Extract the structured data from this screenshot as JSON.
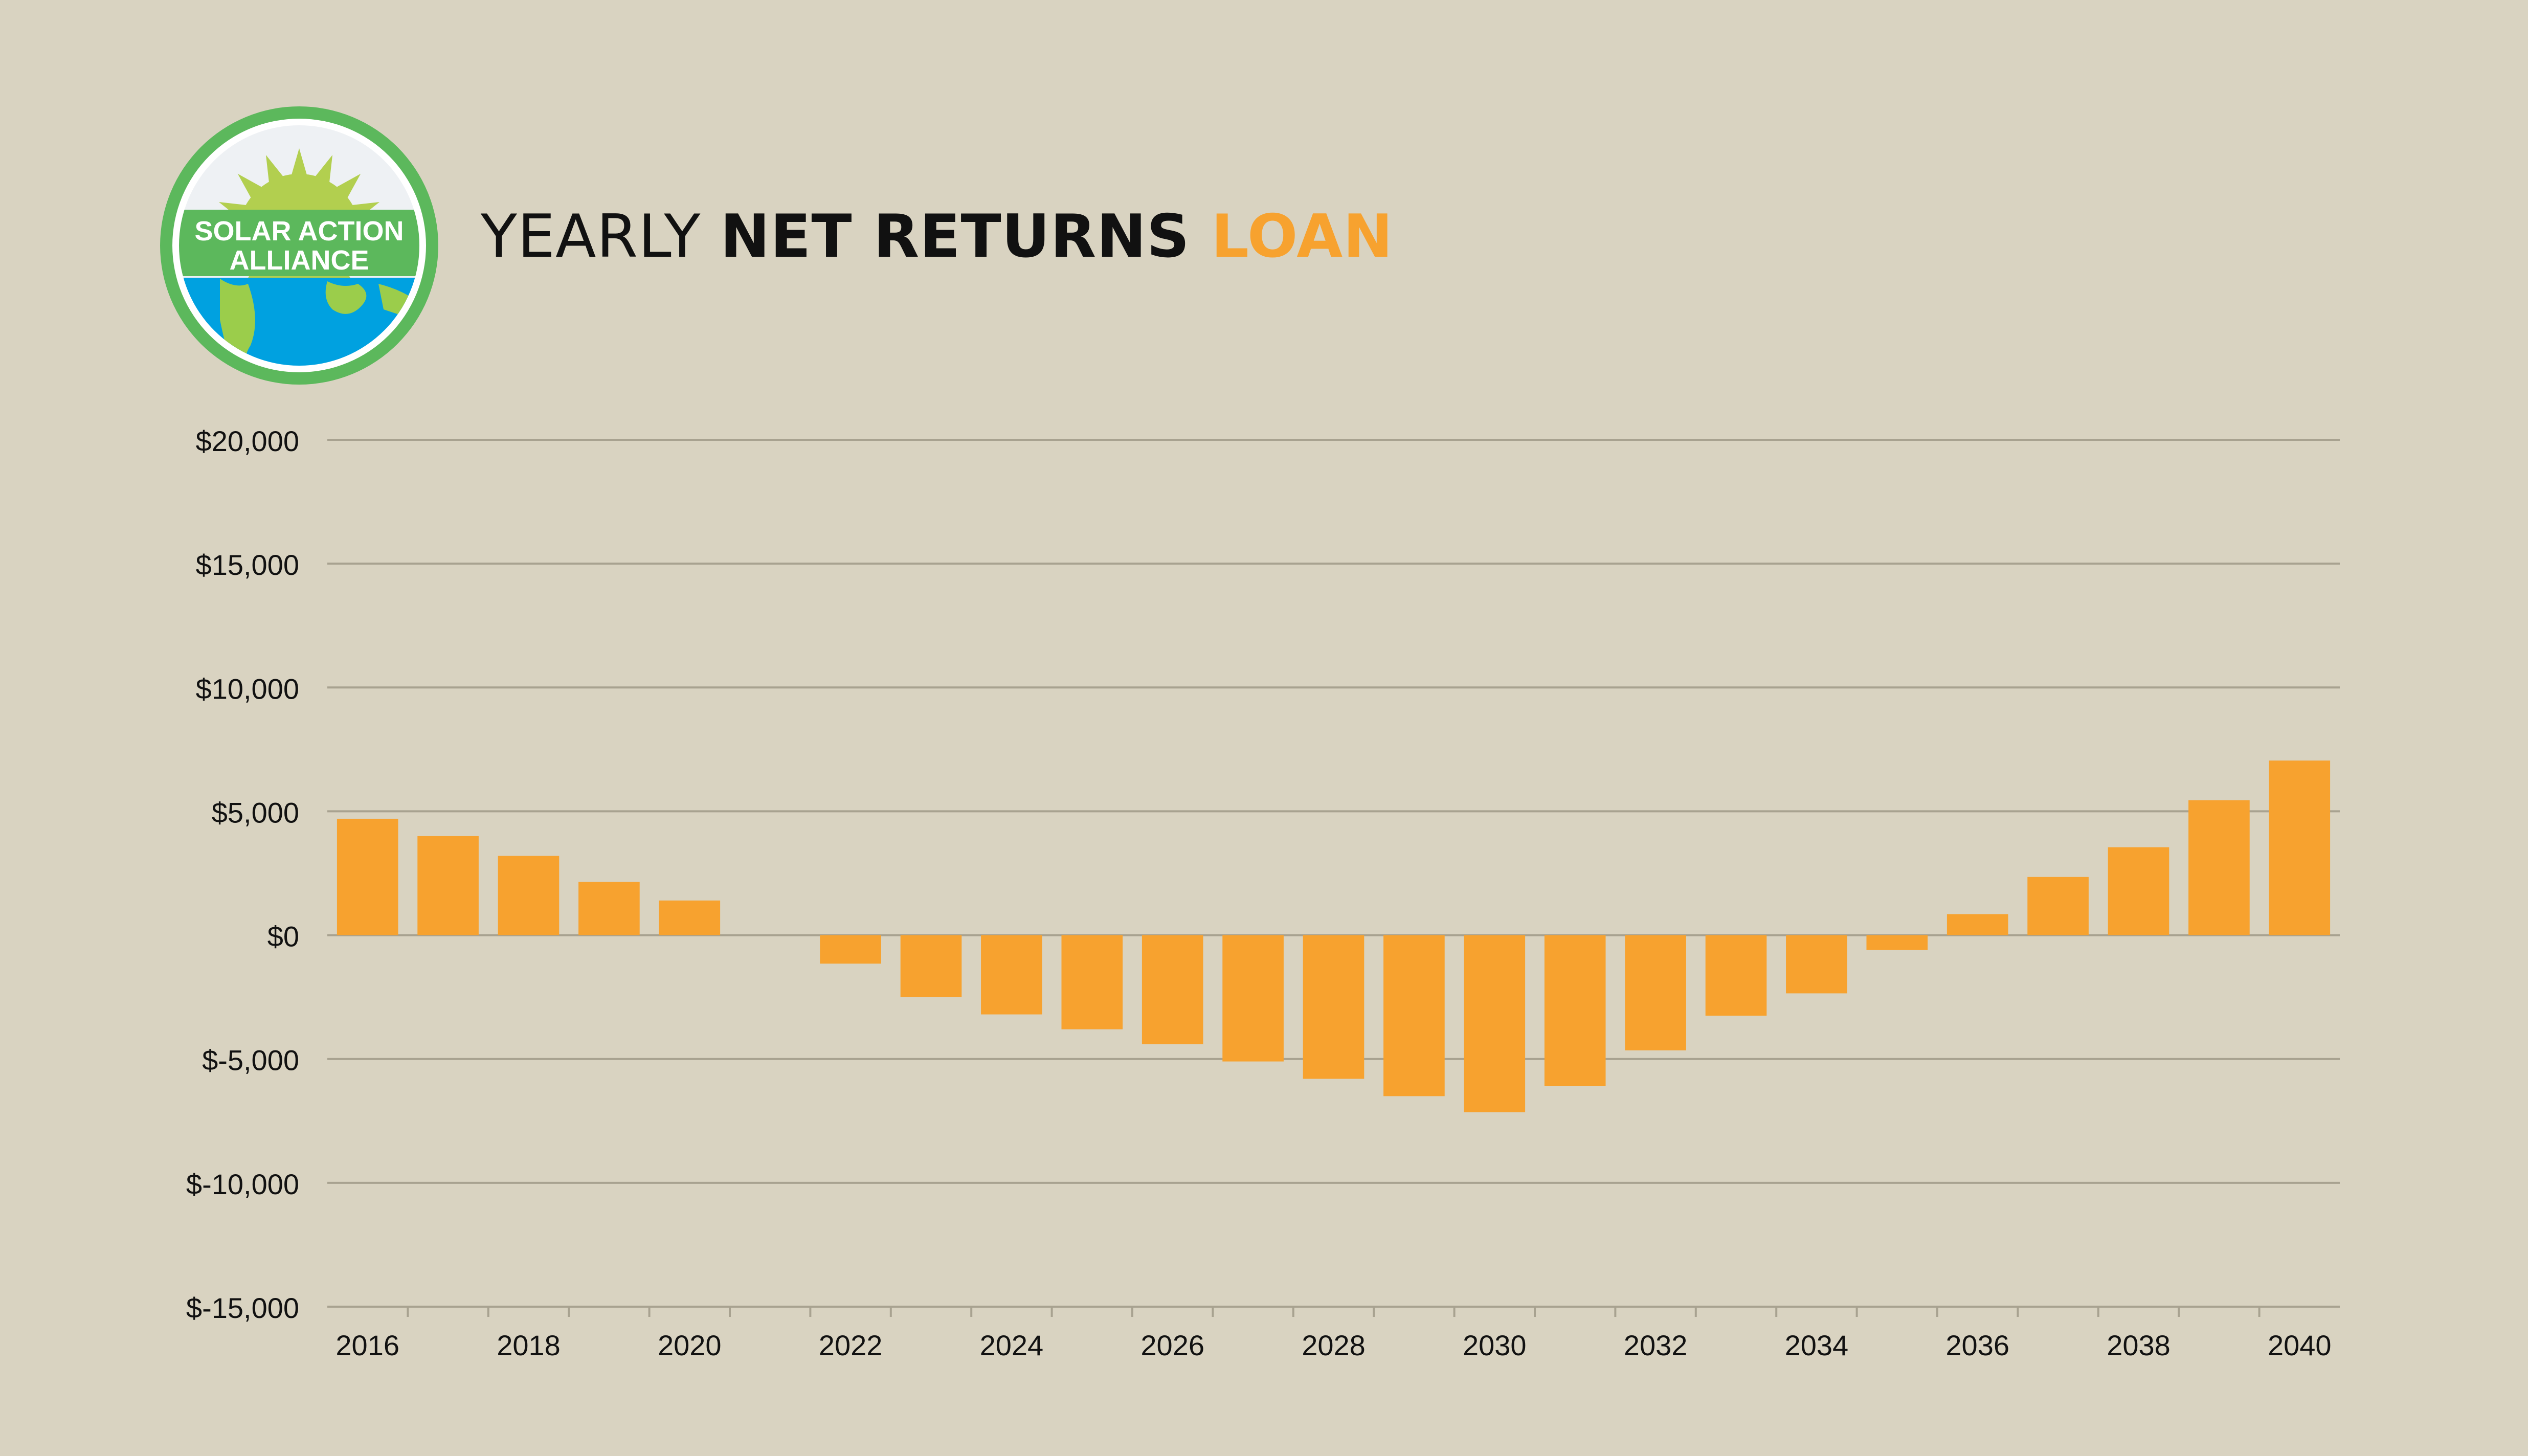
{
  "logo": {
    "line1": "SOLAR ACTION",
    "line2": "ALLIANCE",
    "icon": "sun-over-earth-logo",
    "colors": {
      "ring": "#5cb85c",
      "sun": "#b2cf4f",
      "earth": "#00a1e0",
      "land": "#9bcd4b",
      "band": "#5cb85c"
    }
  },
  "title": {
    "part1": "YEARLY ",
    "part2": "NET RETURNS ",
    "part3": "LOAN"
  },
  "colors": {
    "bar": "#f7a22f",
    "grid": "#a8a290",
    "background": "#d9d3c1",
    "text": "#111111"
  },
  "chart_data": {
    "type": "bar",
    "categories": [
      "2016",
      "2017",
      "2018",
      "2019",
      "2020",
      "2021",
      "2022",
      "2023",
      "2024",
      "2025",
      "2026",
      "2027",
      "2028",
      "2029",
      "2030",
      "2031",
      "2032",
      "2033",
      "2034",
      "2035",
      "2036",
      "2037",
      "2038",
      "2039",
      "2040"
    ],
    "x_tick_labels": [
      "2016",
      "",
      "2018",
      "",
      "2020",
      "",
      "2022",
      "",
      "2024",
      "",
      "2026",
      "",
      "2028",
      "",
      "2030",
      "",
      "2032",
      "",
      "2034",
      "",
      "2036",
      "",
      "2038",
      "",
      "2040"
    ],
    "series": [
      {
        "values": [
          4700,
          4000,
          3200,
          2150,
          1400,
          0,
          -1150,
          -2500,
          -3200,
          -3800,
          -4400,
          -5100,
          -5800,
          -6500,
          -7150,
          -6100,
          -4650,
          -3250,
          -2350,
          -600,
          850,
          2350,
          3550,
          5450,
          7050
        ]
      }
    ],
    "yticks": [
      20000,
      15000,
      10000,
      5000,
      0,
      -5000,
      -10000,
      -15000
    ],
    "ytick_labels": [
      "$20,000",
      "$15,000",
      "$10,000",
      "$5,000",
      "$0",
      "$-5,000",
      "$-10,000",
      "$-15,000"
    ],
    "ylim": [
      -15000,
      20000
    ],
    "grid": true,
    "legend": "none",
    "title": "YEARLY NET RETURNS LOAN",
    "xlabel": "",
    "ylabel": ""
  }
}
